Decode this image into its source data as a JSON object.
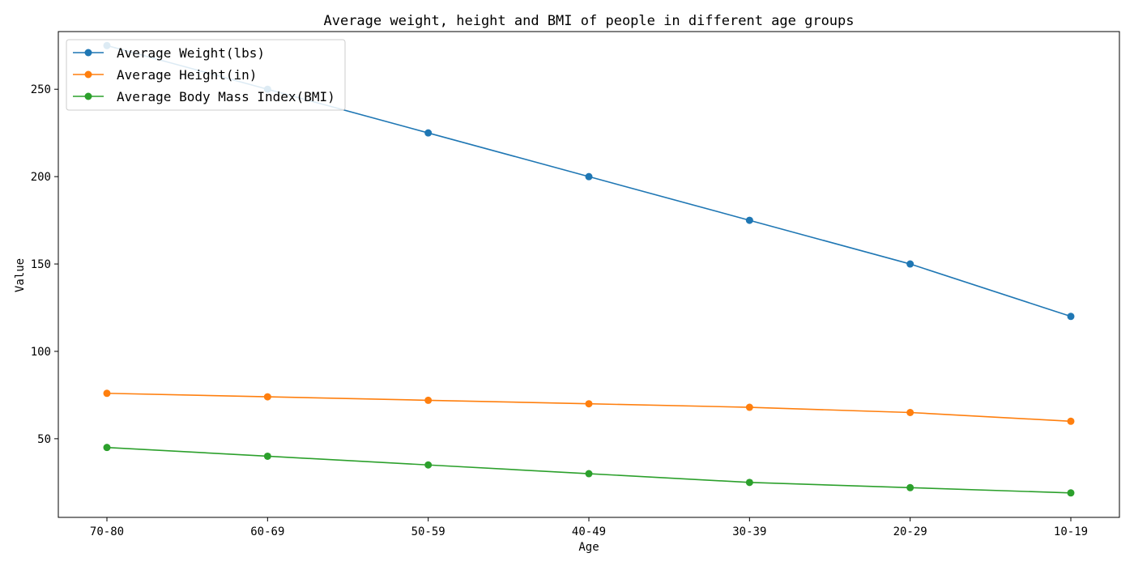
{
  "chart_data": {
    "type": "line",
    "title": "Average weight, height and BMI of people in different age groups",
    "xlabel": "Age",
    "ylabel": "Value",
    "categories": [
      "70-80",
      "60-69",
      "50-59",
      "40-49",
      "30-39",
      "20-29",
      "10-19"
    ],
    "yticks": [
      50,
      100,
      150,
      200,
      250
    ],
    "ylim": [
      5,
      283
    ],
    "grid": false,
    "legend_position": "top-left",
    "series": [
      {
        "name": "Average Weight(lbs)",
        "color": "#1f77b4",
        "values": [
          275,
          250,
          225,
          200,
          175,
          150,
          120
        ]
      },
      {
        "name": "Average Height(in)",
        "color": "#ff7f0e",
        "values": [
          76,
          74,
          72,
          70,
          68,
          65,
          60
        ]
      },
      {
        "name": "Average Body Mass Index(BMI)",
        "color": "#2ca02c",
        "values": [
          45,
          40,
          35,
          30,
          25,
          22,
          19
        ]
      }
    ]
  }
}
